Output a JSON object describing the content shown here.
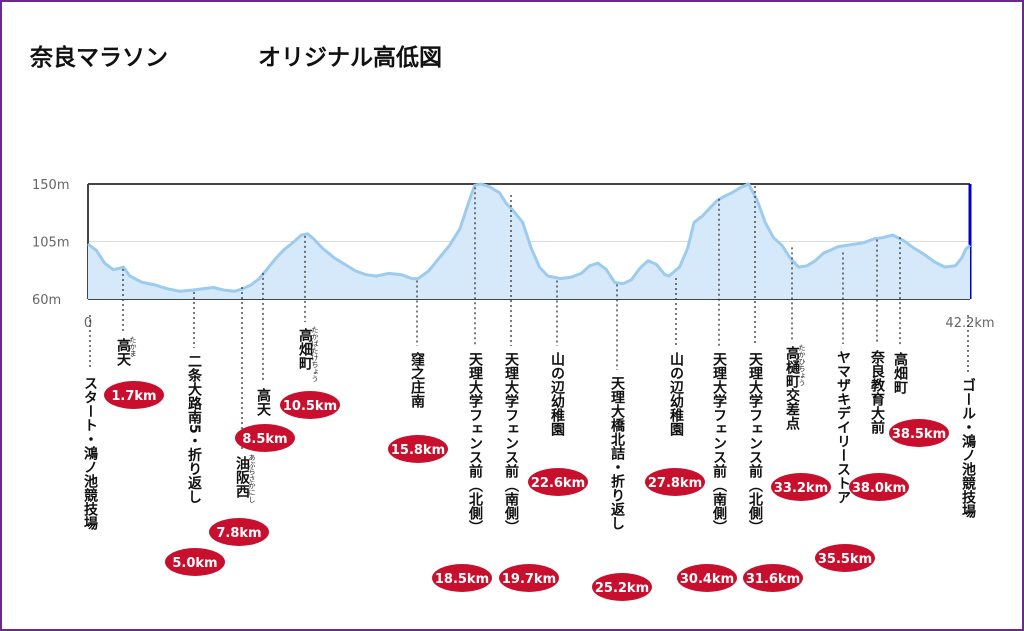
{
  "title_main": "奈良マラソン",
  "title_sub": "オリジナル高低図",
  "colors": {
    "border": "#6a2a8a",
    "badge": "#c8102e",
    "fill": "#d6e9fa",
    "line": "#9ccbef",
    "finish": "#0000cc"
  },
  "chart_data": {
    "type": "area",
    "title": "奈良マラソン オリジナル高低図",
    "xlim": [
      0,
      42.2
    ],
    "ylim": [
      60,
      150
    ],
    "yticks": [
      "150m",
      "105m",
      "60m"
    ],
    "xticks": [
      "0",
      "42.2km"
    ],
    "grid": true,
    "elevation": [
      [
        0,
        103
      ],
      [
        0.4,
        98
      ],
      [
        0.8,
        88
      ],
      [
        1.2,
        83
      ],
      [
        1.5,
        84
      ],
      [
        1.7,
        85
      ],
      [
        2.0,
        78
      ],
      [
        2.6,
        73
      ],
      [
        3.2,
        71
      ],
      [
        3.8,
        68
      ],
      [
        4.4,
        66
      ],
      [
        5.0,
        67
      ],
      [
        5.5,
        68
      ],
      [
        6.0,
        69
      ],
      [
        6.5,
        67
      ],
      [
        7.0,
        66
      ],
      [
        7.4,
        68
      ],
      [
        7.8,
        71
      ],
      [
        8.2,
        76
      ],
      [
        8.6,
        84
      ],
      [
        9.0,
        92
      ],
      [
        9.4,
        99
      ],
      [
        9.8,
        104
      ],
      [
        10.2,
        110
      ],
      [
        10.5,
        111
      ],
      [
        10.8,
        107
      ],
      [
        11.2,
        100
      ],
      [
        11.8,
        92
      ],
      [
        12.3,
        87
      ],
      [
        12.8,
        82
      ],
      [
        13.3,
        79
      ],
      [
        13.8,
        78
      ],
      [
        14.4,
        80
      ],
      [
        15.0,
        79
      ],
      [
        15.5,
        76
      ],
      [
        15.8,
        76
      ],
      [
        16.3,
        82
      ],
      [
        16.8,
        92
      ],
      [
        17.3,
        102
      ],
      [
        17.8,
        115
      ],
      [
        18.2,
        135
      ],
      [
        18.5,
        149
      ],
      [
        18.8,
        150
      ],
      [
        19.2,
        148
      ],
      [
        19.7,
        143
      ],
      [
        20.0,
        135
      ],
      [
        20.3,
        130
      ],
      [
        20.8,
        120
      ],
      [
        21.2,
        100
      ],
      [
        21.6,
        85
      ],
      [
        22.0,
        78
      ],
      [
        22.6,
        76
      ],
      [
        23.1,
        77
      ],
      [
        23.6,
        80
      ],
      [
        24.0,
        86
      ],
      [
        24.4,
        88
      ],
      [
        24.8,
        83
      ],
      [
        25.2,
        73
      ],
      [
        25.6,
        72
      ],
      [
        26.0,
        75
      ],
      [
        26.4,
        84
      ],
      [
        26.8,
        90
      ],
      [
        27.2,
        87
      ],
      [
        27.6,
        79
      ],
      [
        27.8,
        78
      ],
      [
        28.3,
        85
      ],
      [
        28.7,
        100
      ],
      [
        29.0,
        120
      ],
      [
        29.4,
        125
      ],
      [
        29.8,
        132
      ],
      [
        30.1,
        137
      ],
      [
        30.4,
        140
      ],
      [
        30.8,
        143
      ],
      [
        31.2,
        147
      ],
      [
        31.6,
        150
      ],
      [
        32.0,
        138
      ],
      [
        32.4,
        120
      ],
      [
        32.8,
        108
      ],
      [
        33.2,
        102
      ],
      [
        33.6,
        92
      ],
      [
        34.0,
        85
      ],
      [
        34.4,
        86
      ],
      [
        34.8,
        90
      ],
      [
        35.2,
        96
      ],
      [
        35.5,
        98
      ],
      [
        35.9,
        101
      ],
      [
        36.3,
        102
      ],
      [
        36.7,
        103
      ],
      [
        37.1,
        104
      ],
      [
        37.6,
        107
      ],
      [
        38.0,
        108
      ],
      [
        38.5,
        110
      ],
      [
        39.0,
        106
      ],
      [
        39.5,
        100
      ],
      [
        40.0,
        95
      ],
      [
        40.5,
        89
      ],
      [
        41.0,
        85
      ],
      [
        41.5,
        86
      ],
      [
        41.8,
        92
      ],
      [
        42.0,
        99
      ],
      [
        42.2,
        102
      ]
    ],
    "points": [
      {
        "id": "start",
        "km": 0.0,
        "km_label": "",
        "name": "スタート・鴻ノ池競技場",
        "furigana": ""
      },
      {
        "id": "takama-1",
        "km": 1.7,
        "km_label": "1.7km",
        "name": "高天",
        "furigana": "たかま"
      },
      {
        "id": "nijo",
        "km": 5.0,
        "km_label": "5.0km",
        "name": "二条大路南5・折り返し",
        "furigana": ""
      },
      {
        "id": "aburasakanishi",
        "km": 7.8,
        "km_label": "7.8km",
        "name": "油阪西",
        "furigana": "あぶらさかにし"
      },
      {
        "id": "takama-2",
        "km": 8.5,
        "km_label": "8.5km",
        "name": "高天",
        "furigana": ""
      },
      {
        "id": "takabatake-1",
        "km": 10.5,
        "km_label": "10.5km",
        "name": "高畑町",
        "furigana": "たかばたけちょう"
      },
      {
        "id": "kubonosho",
        "km": 15.8,
        "km_label": "15.8km",
        "name": "窪之庄南",
        "furigana": ""
      },
      {
        "id": "tenri-north-1",
        "km": 18.5,
        "km_label": "18.5km",
        "name": "天理大学フェンス前（北側）",
        "furigana": ""
      },
      {
        "id": "tenri-south-1",
        "km": 19.7,
        "km_label": "19.7km",
        "name": "天理大学フェンス前（南側）",
        "furigana": ""
      },
      {
        "id": "yamanobe-1",
        "km": 22.6,
        "km_label": "22.6km",
        "name": "山の辺幼稚園",
        "furigana": ""
      },
      {
        "id": "tenri-bridge",
        "km": 25.2,
        "km_label": "25.2km",
        "name": "天理大橋北詰・折り返し",
        "furigana": ""
      },
      {
        "id": "yamanobe-2",
        "km": 27.8,
        "km_label": "27.8km",
        "name": "山の辺幼稚園",
        "furigana": ""
      },
      {
        "id": "tenri-south-2",
        "km": 30.4,
        "km_label": "30.4km",
        "name": "天理大学フェンス前（南側）",
        "furigana": ""
      },
      {
        "id": "tenri-north-2",
        "km": 31.6,
        "km_label": "31.6km",
        "name": "天理大学フェンス前（北側）",
        "furigana": ""
      },
      {
        "id": "takahi",
        "km": 33.2,
        "km_label": "33.2km",
        "name": "高樋町交差点",
        "furigana": "たかひちょう"
      },
      {
        "id": "yamazaki",
        "km": 35.5,
        "km_label": "35.5km",
        "name": "ヤマザキデイリーストア",
        "furigana": ""
      },
      {
        "id": "kyoiku",
        "km": 38.0,
        "km_label": "38.0km",
        "name": "奈良教育大前",
        "furigana": ""
      },
      {
        "id": "takabatake-2",
        "km": 38.5,
        "km_label": "38.5km",
        "name": "高畑町",
        "furigana": ""
      },
      {
        "id": "goal",
        "km": 42.2,
        "km_label": "",
        "name": "ゴール・鴻ノ池競技場",
        "furigana": ""
      }
    ]
  }
}
